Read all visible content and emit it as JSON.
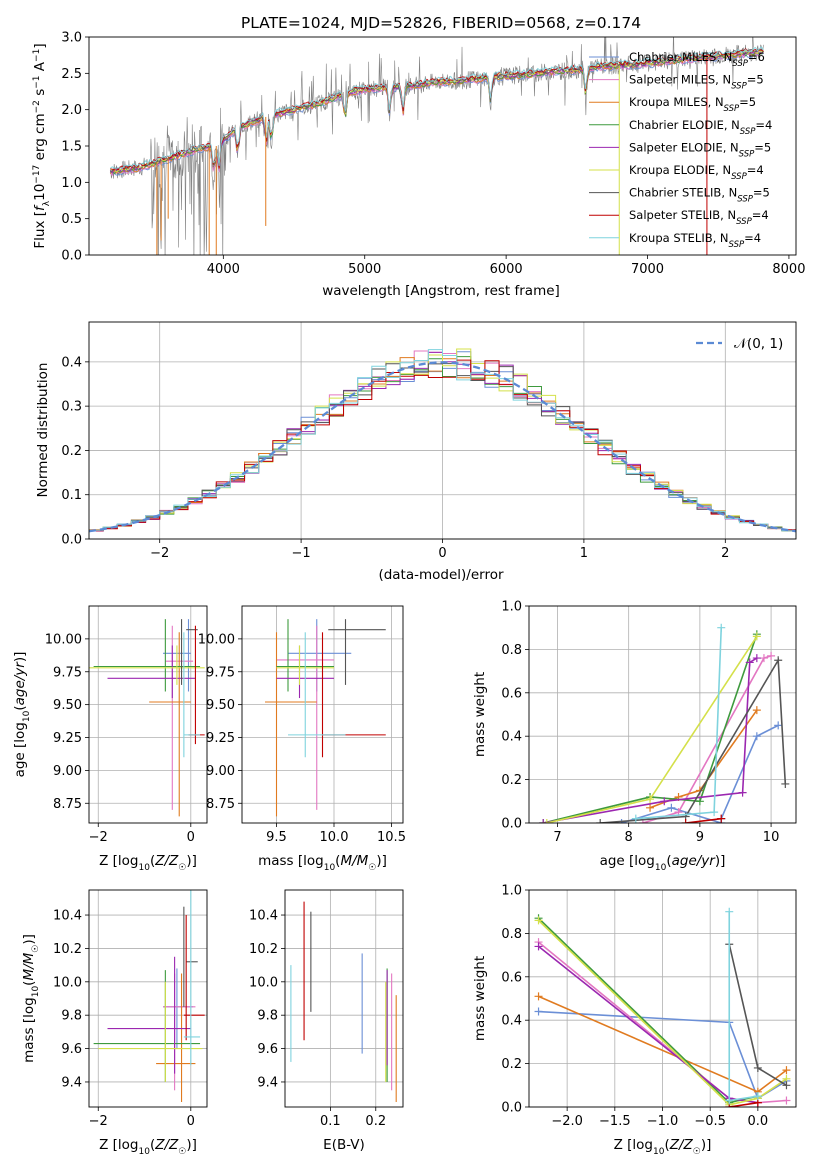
{
  "figure": {
    "title": "PLATE=1024, MJD=52826, FIBERID=0568, z=0.174"
  },
  "colors": {
    "Chabrier MILES": "#6b8fd6",
    "Salpeter MILES": "#e377c2",
    "Kroupa MILES": "#e07b20",
    "Chabrier ELODIE": "#3e9a3e",
    "Salpeter ELODIE": "#9b27b0",
    "Kroupa ELODIE": "#d4e04a",
    "Chabrier STELIB": "#555555",
    "Salpeter STELIB": "#c00000",
    "Kroupa STELIB": "#7fd3de",
    "data": "#808080",
    "normal": "#5b8ad4"
  },
  "chart_data": [
    {
      "id": "spectrum",
      "type": "line",
      "title": "PLATE=1024, MJD=52826, FIBERID=0568, z=0.174",
      "xlabel": "wavelength [Angstrom, rest frame]",
      "ylabel": "Flux [f_λ 10^-17 erg cm^-2 s^-1 A^-1]",
      "xlim": [
        3050,
        8050
      ],
      "ylim": [
        0.0,
        3.0
      ],
      "xticks": [
        "4000",
        "5000",
        "6000",
        "7000",
        "8000"
      ],
      "yticks": [
        "0.0",
        "0.5",
        "1.0",
        "1.5",
        "2.0",
        "2.5",
        "3.0"
      ],
      "legend": [
        {
          "label": "Chabrier MILES, N",
          "sub": "SSP",
          "n": "=6"
        },
        {
          "label": "Salpeter MILES, N",
          "sub": "SSP",
          "n": "=5"
        },
        {
          "label": "Kroupa MILES, N",
          "sub": "SSP",
          "n": "=5"
        },
        {
          "label": "Chabrier ELODIE, N",
          "sub": "SSP",
          "n": "=4"
        },
        {
          "label": "Salpeter ELODIE, N",
          "sub": "SSP",
          "n": "=5"
        },
        {
          "label": "Kroupa ELODIE, N",
          "sub": "SSP",
          "n": "=4"
        },
        {
          "label": "Chabrier STELIB, N",
          "sub": "SSP",
          "n": "=5"
        },
        {
          "label": "Salpeter STELIB, N",
          "sub": "SSP",
          "n": "=4"
        },
        {
          "label": "Kroupa STELIB, N",
          "sub": "SSP",
          "n": "=4"
        }
      ],
      "continuum": [
        [
          3200,
          1.15
        ],
        [
          3400,
          1.2
        ],
        [
          3600,
          1.32
        ],
        [
          3800,
          1.45
        ],
        [
          3950,
          1.5
        ],
        [
          4100,
          1.75
        ],
        [
          4300,
          1.9
        ],
        [
          4500,
          2.0
        ],
        [
          4700,
          2.1
        ],
        [
          4900,
          2.25
        ],
        [
          5100,
          2.3
        ],
        [
          5300,
          2.32
        ],
        [
          5500,
          2.38
        ],
        [
          5700,
          2.4
        ],
        [
          5900,
          2.45
        ],
        [
          6100,
          2.48
        ],
        [
          6300,
          2.52
        ],
        [
          6500,
          2.55
        ],
        [
          6700,
          2.6
        ],
        [
          6900,
          2.62
        ],
        [
          7100,
          2.66
        ],
        [
          7300,
          2.7
        ],
        [
          7500,
          2.74
        ],
        [
          7700,
          2.78
        ],
        [
          7820,
          2.8
        ]
      ]
    },
    {
      "id": "residuals",
      "type": "bar",
      "xlabel": "(data-model)/error",
      "ylabel": "Normed distribution",
      "xlim": [
        -2.5,
        2.5
      ],
      "ylim": [
        0.0,
        0.49
      ],
      "xticks": [
        "−2",
        "−1",
        "0",
        "1",
        "2"
      ],
      "yticks": [
        "0.0",
        "0.1",
        "0.2",
        "0.3",
        "0.4"
      ],
      "legend": "𝒩(0, 1)",
      "bins": 50
    },
    {
      "id": "age-vs-Z",
      "type": "scatter",
      "xlabel": "Z [log10(Z/Z☉)]",
      "ylabel": "age  [log10(age/yr)]",
      "xlim": [
        -2.2,
        0.35
      ],
      "ylim": [
        8.6,
        10.25
      ],
      "xticks": [
        "−2",
        "0"
      ],
      "yticks": [
        "8.75",
        "9.00",
        "9.25",
        "9.50",
        "9.75",
        "10.00"
      ]
    },
    {
      "id": "age-vs-mass",
      "type": "scatter",
      "xlabel": "mass [log10(M/M☉)]",
      "xlim": [
        9.2,
        10.6
      ],
      "ylim": [
        8.6,
        10.25
      ],
      "xticks": [
        "9.5",
        "10.0",
        "10.5"
      ],
      "yticks": [
        "8.75",
        "9.00",
        "9.25",
        "9.50",
        "9.75",
        "10.00"
      ]
    },
    {
      "id": "weight-vs-age",
      "type": "line",
      "xlabel": "age  [log10(age/yr)]",
      "ylabel": "mass weight",
      "xlim": [
        6.6,
        10.35
      ],
      "ylim": [
        0.0,
        1.0
      ],
      "xticks": [
        "7",
        "8",
        "9",
        "10"
      ],
      "yticks": [
        "0.0",
        "0.2",
        "0.4",
        "0.6",
        "0.8",
        "1.0"
      ]
    },
    {
      "id": "mass-vs-Z",
      "type": "scatter",
      "xlabel": "Z [log10(Z/Z☉)]",
      "ylabel": "mass [log10(M/M☉)]",
      "xlim": [
        -2.2,
        0.35
      ],
      "ylim": [
        9.25,
        10.55
      ],
      "xticks": [
        "−2",
        "0"
      ],
      "yticks": [
        "9.4",
        "9.6",
        "9.8",
        "10.0",
        "10.2",
        "10.4"
      ]
    },
    {
      "id": "mass-vs-ebv",
      "type": "scatter",
      "xlabel": "E(B-V)",
      "xlim": [
        0.0,
        0.26
      ],
      "ylim": [
        9.25,
        10.55
      ],
      "xticks": [
        "0.1",
        "0.2"
      ],
      "yticks": [
        "9.4",
        "9.6",
        "9.8",
        "10.0",
        "10.2",
        "10.4"
      ]
    },
    {
      "id": "weight-vs-Z",
      "type": "line",
      "xlabel": "Z [log10(Z/Z☉)]",
      "ylabel": "mass weight",
      "xlim": [
        -2.4,
        0.4
      ],
      "ylim": [
        0.0,
        1.0
      ],
      "xticks": [
        "−2.0",
        "−1.5",
        "−1.0",
        "−0.5",
        "0.0"
      ],
      "yticks": [
        "0.0",
        "0.2",
        "0.4",
        "0.6",
        "0.8",
        "1.0"
      ]
    }
  ],
  "text": {
    "title": "PLATE=1024, MJD=52826, FIBERID=0568, z=0.174",
    "p1_xlabel": "wavelength [Angstrom, rest frame]",
    "p2_xlabel": "(data-model)/error",
    "p2_ylabel": "Normed distribution",
    "p2_legend": "𝒩(0, 1)",
    "p5_ylabel": "mass weight",
    "p8_ylabel": "mass weight",
    "ebv": "E(B-V)"
  }
}
